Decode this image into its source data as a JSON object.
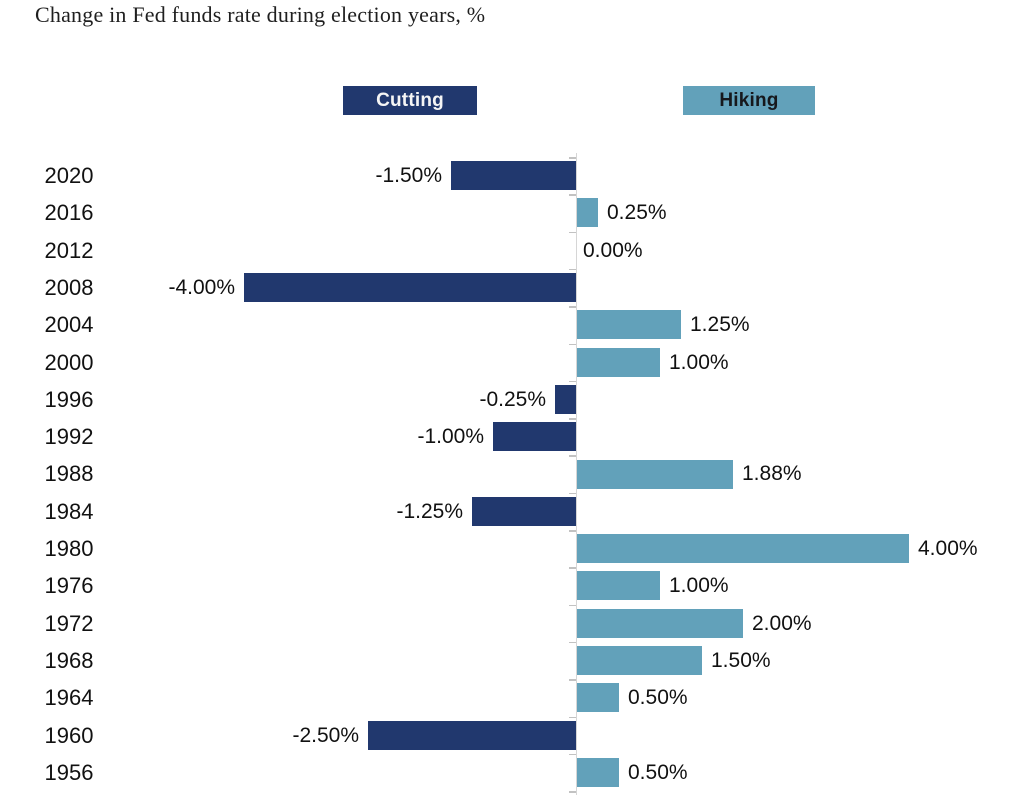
{
  "page": {
    "title": "Change in Fed funds rate during election years, %"
  },
  "legend": {
    "cutting_label": "Cutting",
    "hiking_label": "Hiking"
  },
  "colors": {
    "cutting_bar": "#21386e",
    "hiking_bar": "#62a1ba",
    "axis_line": "#d6d6d6",
    "tick": "#c2c2c2",
    "label_text": "#111111",
    "title_text": "#1f1f1f",
    "legend_cutting_text": "#f5f5f5",
    "legend_hiking_text": "#16181c"
  },
  "chart_data": {
    "type": "bar",
    "orientation": "horizontal",
    "title": "Change in Fed funds rate during election years, %",
    "unit": "%",
    "xlim": [
      -4.4,
      4.4
    ],
    "grid": false,
    "legend_position": "top",
    "legend_entries": [
      "Cutting",
      "Hiking"
    ],
    "series_rule": "negative values = Cutting (dark navy, extends left of axis); positive values = Hiking (light blue, extends right of axis)",
    "categories": [
      "2020",
      "2016",
      "2012",
      "2008",
      "2004",
      "2000",
      "1996",
      "1992",
      "1988",
      "1984",
      "1980",
      "1976",
      "1972",
      "1968",
      "1964",
      "1960",
      "1956"
    ],
    "values": [
      -1.5,
      0.25,
      0,
      -4,
      1.25,
      1,
      -0.25,
      -1,
      1.88,
      -1.25,
      4,
      1,
      2,
      1.5,
      0.5,
      -2.5,
      0.5
    ],
    "labels": [
      "-1.50%",
      "0.25%",
      "0.00%",
      "-4.00%",
      "1.25%",
      "1.00%",
      "-0.25%",
      "-1.00%",
      "1.88%",
      "-1.25%",
      "4.00%",
      "1.00%",
      "2.00%",
      "1.50%",
      "0.50%",
      "-2.50%",
      "0.50%"
    ],
    "point_series": [
      "Cutting",
      "Hiking",
      "None",
      "Cutting",
      "Hiking",
      "Hiking",
      "Cutting",
      "Cutting",
      "Hiking",
      "Cutting",
      "Hiking",
      "Hiking",
      "Hiking",
      "Hiking",
      "Hiking",
      "Cutting",
      "Hiking"
    ]
  }
}
